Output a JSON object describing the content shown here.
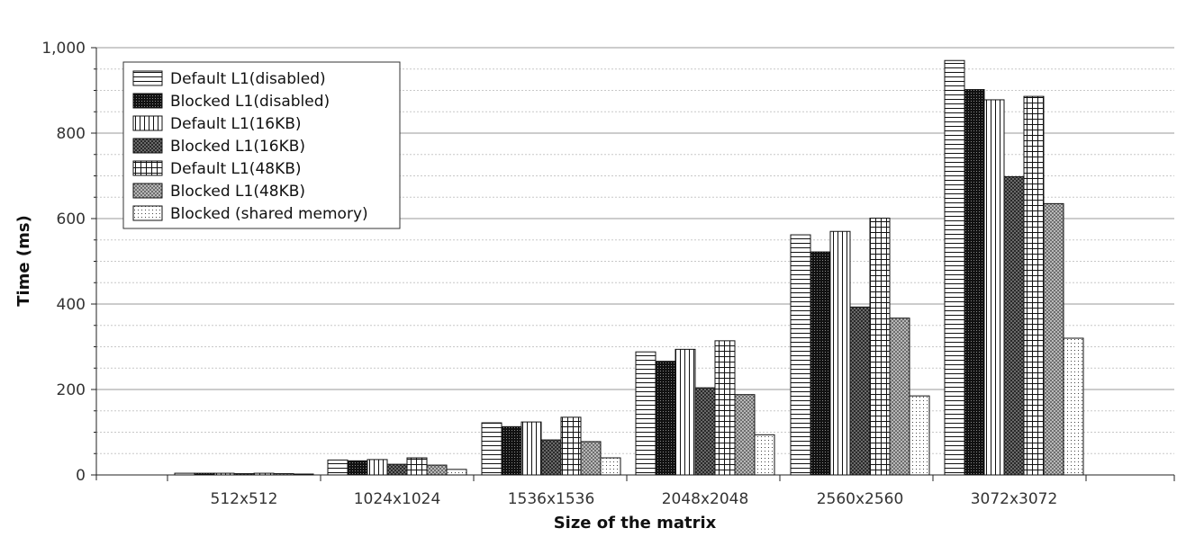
{
  "chart_data": {
    "type": "bar",
    "title": "",
    "xlabel": "Size of the matrix",
    "ylabel": "Time (ms)",
    "ylim": [
      0,
      1000
    ],
    "yticks": [
      0,
      200,
      400,
      600,
      800,
      1000
    ],
    "ytick_labels": [
      "0",
      "200",
      "400",
      "600",
      "800",
      "1,000"
    ],
    "grid": true,
    "legend_position": "top-left",
    "categories": [
      "512x512",
      "1024x1024",
      "1536x1536",
      "2048x2048",
      "2560x2560",
      "3072x3072"
    ],
    "series": [
      {
        "name": "Default L1(disabled)",
        "pattern": "hlines",
        "values": [
          4,
          35,
          122,
          288,
          562,
          970
        ]
      },
      {
        "name": "Blocked L1(disabled)",
        "pattern": "dense",
        "values": [
          4,
          33,
          113,
          266,
          522,
          902
        ]
      },
      {
        "name": "Default L1(16KB)",
        "pattern": "vlines",
        "values": [
          4,
          36,
          124,
          294,
          570,
          878
        ]
      },
      {
        "name": "Blocked L1(16KB)",
        "pattern": "crosshatch-dark",
        "values": [
          3,
          25,
          82,
          204,
          393,
          698
        ]
      },
      {
        "name": "Default L1(48KB)",
        "pattern": "grid",
        "values": [
          4,
          40,
          135,
          314,
          601,
          886
        ]
      },
      {
        "name": "Blocked L1(48KB)",
        "pattern": "crosshatch-light",
        "values": [
          3,
          23,
          78,
          188,
          367,
          635
        ]
      },
      {
        "name": "Blocked (shared memory)",
        "pattern": "dots",
        "values": [
          2,
          13,
          40,
          94,
          185,
          320
        ]
      }
    ]
  }
}
